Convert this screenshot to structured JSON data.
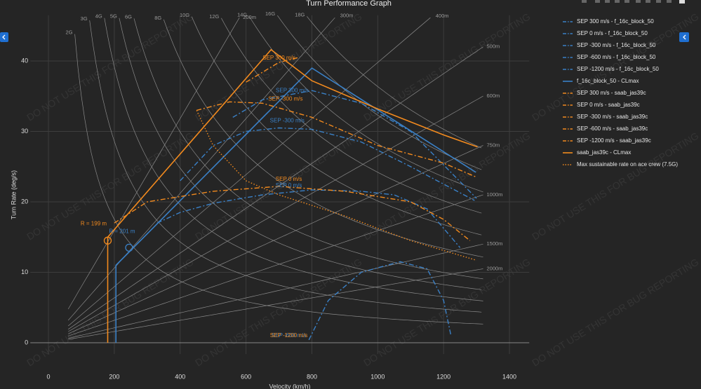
{
  "chart_data": {
    "type": "line",
    "title": "Turn Performance Graph",
    "x_label": "Velocity (km/h)",
    "y_label": "Turn Rate (deg/s)",
    "watermark": "DO NOT USE THIS FOR BUG REPORTING",
    "xlim": [
      -55,
      1460
    ],
    "ylim": [
      -1.6,
      46.5
    ],
    "xticks": [
      0,
      200,
      400,
      600,
      800,
      1000,
      1200,
      1400
    ],
    "yticks": [
      0,
      10,
      20,
      30,
      40
    ],
    "grid": true,
    "load_factor_lines": [
      {
        "value": 2,
        "label": "2G"
      },
      {
        "value": 3,
        "label": "3G"
      },
      {
        "value": 4,
        "label": "4G"
      },
      {
        "value": 5,
        "label": "5G"
      },
      {
        "value": 6,
        "label": "6G"
      },
      {
        "value": 8,
        "label": "8G"
      },
      {
        "value": 10,
        "label": "10G"
      },
      {
        "value": 12,
        "label": "12G"
      },
      {
        "value": 14,
        "label": "14G"
      },
      {
        "value": 16,
        "label": "16G"
      },
      {
        "value": 18,
        "label": "18G"
      }
    ],
    "radius_lines": [
      {
        "value": 200,
        "label": "200m"
      },
      {
        "value": 300,
        "label": "300m"
      },
      {
        "value": 400,
        "label": "400m"
      },
      {
        "value": 500,
        "label": "500m"
      },
      {
        "value": 600,
        "label": "600m"
      },
      {
        "value": 750,
        "label": "750m"
      },
      {
        "value": 1000,
        "label": "1000m"
      },
      {
        "value": 1500,
        "label": "1500m"
      },
      {
        "value": 2000,
        "label": "2000m"
      }
    ],
    "series": [
      {
        "name": "SEP 300 m/s - f_16c_block_50",
        "color": "#3a80c6",
        "style": "dashdot",
        "x": [
          560,
          650,
          800,
          950,
          1100,
          1300
        ],
        "y": [
          32,
          34.5,
          35.8,
          34,
          30,
          20.5
        ]
      },
      {
        "name": "SEP 0 m/s - f_16c_block_50",
        "color": "#3a80c6",
        "style": "dashdot",
        "x": [
          330,
          400,
          500,
          650,
          800,
          950,
          1050,
          1150,
          1250
        ],
        "y": [
          17,
          18.5,
          19.8,
          21,
          21.7,
          21.5,
          21,
          19,
          13.5
        ]
      },
      {
        "name": "SEP -300 m/s - f_16c_block_50",
        "color": "#3a80c6",
        "style": "dashdot",
        "x": [
          400,
          500,
          600,
          700,
          800,
          950,
          1100,
          1294
        ],
        "y": [
          23,
          28,
          30,
          30.5,
          30.3,
          28.5,
          25,
          20.2
        ]
      },
      {
        "name": "SEP -600 m/s - f_16c_block_50",
        "color": "#3a80c6",
        "style": "dashdot",
        "x": [
          791,
          850,
          950,
          1068,
          1150,
          1200,
          1222
        ],
        "y": [
          0.4,
          6,
          10,
          11.5,
          10.5,
          6,
          1.1
        ]
      },
      {
        "name": "SEP -1200 m/s - f_16c_block_50",
        "color": "#3a80c6",
        "style": "dashdot",
        "x": [],
        "y": []
      },
      {
        "name": "f_16c_block_50 - CLmax",
        "color": "#3a80c6",
        "style": "solid",
        "x": [
          205,
          205,
          800,
          1298
        ],
        "y": [
          0,
          11,
          39,
          24.2
        ]
      },
      {
        "name": "SEP 300 m/s - saab_jas39c",
        "color": "#f28a1e",
        "style": "dashdot",
        "x": [
          450,
          550,
          650,
          800,
          1000,
          1200,
          1300
        ],
        "y": [
          33,
          34.2,
          34,
          32,
          28,
          25.5,
          23.5
        ]
      },
      {
        "name": "SEP 0 m/s - saab_jas39c",
        "color": "#f28a1e",
        "style": "dashdot",
        "x": [
          200,
          300,
          500,
          700,
          900,
          1100,
          1200,
          1280
        ],
        "y": [
          17,
          20,
          21.5,
          22.2,
          21.5,
          20,
          17.5,
          14.5
        ]
      },
      {
        "name": "SEP -300 m/s - saab_jas39c",
        "color": "#f28a1e",
        "style": "dashdot",
        "x": [
          600,
          700,
          760
        ],
        "y": [
          37,
          39.8,
          40.5
        ]
      },
      {
        "name": "SEP -600 m/s - saab_jas39c",
        "color": "#f28a1e",
        "style": "dashdot",
        "x": [],
        "y": []
      },
      {
        "name": "SEP -1200 m/s - saab_jas39c",
        "color": "#f28a1e",
        "style": "dashdot",
        "x": [],
        "y": []
      },
      {
        "name": "saab_jas39c - CLmax",
        "color": "#f28a1e",
        "style": "solid",
        "x": [
          180,
          180,
          676,
          800,
          1000,
          1200,
          1303
        ],
        "y": [
          0,
          15,
          41.6,
          37.2,
          33.2,
          29.5,
          27.8
        ]
      },
      {
        "name": "Max sustainable rate on ace crew (7.5G)",
        "color": "#f28a1e",
        "style": "dot",
        "x": [
          450,
          500,
          600,
          700,
          900,
          1100,
          1300
        ],
        "y": [
          33,
          28,
          23,
          21,
          18,
          14.5,
          11.7
        ]
      }
    ],
    "markers": [
      {
        "label": "R = 199 m",
        "x": 180,
        "y": 14.5,
        "color": "#f28a1e"
      },
      {
        "label": "R = 201 m",
        "x": 245,
        "y": 13.5,
        "color": "#3a80c6"
      }
    ],
    "annotations": [
      {
        "text": "SEP 300 m/s",
        "x": 700,
        "y": 39.8,
        "color": "#f28a1e"
      },
      {
        "text": "SEP -300 m/s",
        "x": 720,
        "y": 34,
        "color": "#f28a1e"
      },
      {
        "text": "SEP 300 m/s",
        "x": 740,
        "y": 35.2,
        "color": "#3a80c6"
      },
      {
        "text": "SEP -300 m/s",
        "x": 725,
        "y": 30.9,
        "color": "#3a80c6"
      },
      {
        "text": "SEP 0 m/s",
        "x": 730,
        "y": 22.6,
        "color": "#f28a1e"
      },
      {
        "text": "SEP 0 m/s",
        "x": 730,
        "y": 21.7,
        "color": "#3a80c6"
      },
      {
        "text": "SEP -600 m/s",
        "x": 730,
        "y": 0.4,
        "color": "#3a80c6"
      },
      {
        "text": "SEP -1200 m/s",
        "x": 730,
        "y": 0.4,
        "color": "#f28a1e"
      }
    ]
  }
}
